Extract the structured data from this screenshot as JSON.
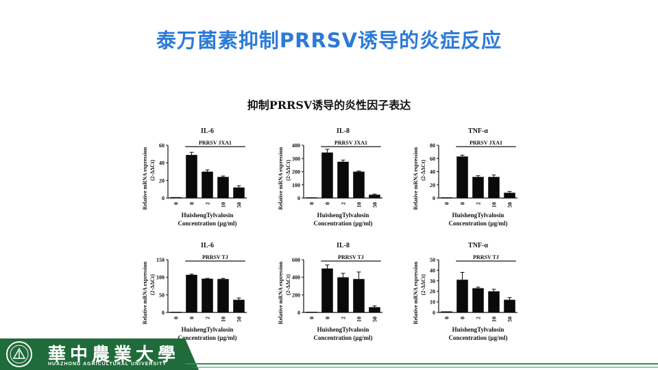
{
  "slide": {
    "title": "泰万菌素抑制PRRSV诱导的炎症反应",
    "figure_title": "抑制PRRSV诱导的炎性因子表达"
  },
  "footer": {
    "university_cn": "華中農業大學",
    "university_en": "HUAZHONG   AGRICULTURAL   UNIVERSITY",
    "logo_icon": "university-emblem-icon",
    "colors": {
      "bar": "#1f6b3a",
      "accent": "#2b7bd8",
      "line": "#2e8b57"
    }
  },
  "chart_data": [
    {
      "type": "bar",
      "title": "IL-6",
      "treatment": "PRRSV JXA1",
      "categories": [
        "0",
        "0",
        "2",
        "10",
        "50"
      ],
      "values": [
        1,
        49,
        30,
        24,
        12
      ],
      "errors": [
        0,
        3,
        2,
        1,
        2
      ],
      "ylim": [
        0,
        60
      ],
      "yticks": [
        0,
        20,
        40,
        60
      ],
      "ylabel": "Relative  mRNA expression",
      "ylabel2": "(2-ΔΔCt)",
      "xlabel": "HuishengTylvalosin",
      "xlabel2": "Concentration (µg/ml)"
    },
    {
      "type": "bar",
      "title": "IL-8",
      "treatment": "PRRSV JXA1",
      "categories": [
        "0",
        "0",
        "2",
        "10",
        "50"
      ],
      "values": [
        2,
        345,
        275,
        200,
        25
      ],
      "errors": [
        0,
        25,
        12,
        5,
        5
      ],
      "ylim": [
        0,
        400
      ],
      "yticks": [
        0,
        100,
        200,
        300,
        400
      ],
      "ylabel": "Relative  mRNA expression",
      "ylabel2": "(2-ΔΔCt)",
      "xlabel": "HuishengTylvalosin",
      "xlabel2": "Concentration (µg/ml)"
    },
    {
      "type": "bar",
      "title": "TNF-α",
      "treatment": "PRRSV JXA1",
      "categories": [
        "0",
        "0",
        "2",
        "10",
        "50"
      ],
      "values": [
        1,
        63,
        32,
        32,
        8
      ],
      "errors": [
        0,
        2,
        2,
        3,
        2
      ],
      "ylim": [
        0,
        80
      ],
      "yticks": [
        0,
        20,
        40,
        60,
        80
      ],
      "ylabel": "Relative  mRNA expression",
      "ylabel2": "(2-ΔΔCt)",
      "xlabel": "HuishengTylvalosin",
      "xlabel2": "Concentration (µg/ml)"
    },
    {
      "type": "bar",
      "title": "IL-6",
      "treatment": "PRRSV TJ",
      "categories": [
        "0",
        "0",
        "2",
        "10",
        "50"
      ],
      "values": [
        1,
        107,
        96,
        95,
        36
      ],
      "errors": [
        0,
        2,
        1,
        2,
        5
      ],
      "ylim": [
        0,
        150
      ],
      "yticks": [
        0,
        50,
        100,
        150
      ],
      "ylabel": "Relative  mRNA expression",
      "ylabel2": "(2-ΔΔCt)",
      "xlabel": "HuishengTylvalosin",
      "xlabel2": "Concentration (µg/ml)"
    },
    {
      "type": "bar",
      "title": "IL-8",
      "treatment": "PRRSV TJ",
      "categories": [
        "0",
        "0",
        "2",
        "10",
        "50"
      ],
      "values": [
        2,
        500,
        400,
        380,
        60
      ],
      "errors": [
        0,
        40,
        45,
        80,
        15
      ],
      "ylim": [
        0,
        600
      ],
      "yticks": [
        0,
        200,
        400,
        600
      ],
      "ylabel": "Relative  mRNA expression",
      "ylabel2": "(2-ΔΔCt)",
      "xlabel": "HuishengTylvalosin",
      "xlabel2": "Concentration (µg/ml)"
    },
    {
      "type": "bar",
      "title": "TNF-α",
      "treatment": "PRRSV TJ",
      "categories": [
        "0",
        "0",
        "2",
        "10",
        "50"
      ],
      "values": [
        1,
        31,
        23,
        20,
        12
      ],
      "errors": [
        0,
        7,
        1,
        2,
        2
      ],
      "ylim": [
        0,
        50
      ],
      "yticks": [
        0,
        10,
        20,
        30,
        40,
        50
      ],
      "ylabel": "Relative  mRNA expression",
      "ylabel2": "(2-ΔΔCt)",
      "xlabel": "HuishengTylvalosin",
      "xlabel2": "Concentration (µg/ml)"
    }
  ]
}
